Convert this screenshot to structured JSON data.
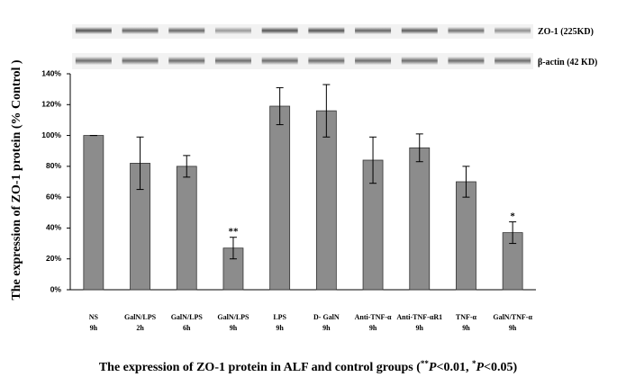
{
  "chart_data": {
    "type": "bar",
    "y_label": "The expression of ZO-1 protein (% Control )",
    "blot_labels": [
      "ZO-1 (225KD)",
      "β-actin (42 KD)"
    ],
    "caption": [
      "The expression of ZO-1 protein in ALF and control groups (",
      "**",
      "P",
      "<0.01, ",
      "*",
      "P",
      "<0.05)"
    ],
    "categories": [
      [
        "NS",
        "9h"
      ],
      [
        "GalN/LPS",
        "2h"
      ],
      [
        "GalN/LPS",
        "6h"
      ],
      [
        "GalN/LPS",
        "9h"
      ],
      [
        "LPS",
        "9h"
      ],
      [
        "D- GalN",
        "9h"
      ],
      [
        "Anti-TNF-α",
        "9h"
      ],
      [
        "Anti-TNF-αR1",
        "9h"
      ],
      [
        "TNF-α",
        "9h"
      ],
      [
        "GalN/TNF-α",
        "9h"
      ]
    ],
    "values": [
      100,
      82,
      80,
      27,
      119,
      116,
      84,
      92,
      70,
      37
    ],
    "errors": [
      0,
      17,
      7,
      7,
      12,
      17,
      15,
      9,
      10,
      7
    ],
    "significance": [
      null,
      null,
      null,
      "**",
      null,
      null,
      null,
      null,
      null,
      "*"
    ],
    "color": "#8c8c8c",
    "ylim": [
      0,
      140
    ],
    "yticks": [
      {
        "value": 0,
        "label": "0%"
      },
      {
        "value": 20,
        "label": "20%"
      },
      {
        "value": 40,
        "label": "40%"
      },
      {
        "value": 60,
        "label": "60%"
      },
      {
        "value": 80,
        "label": "80%"
      },
      {
        "value": 100,
        "label": "100%"
      },
      {
        "value": 120,
        "label": "120%"
      },
      {
        "value": 140,
        "label": "140%"
      }
    ],
    "grid": false
  }
}
